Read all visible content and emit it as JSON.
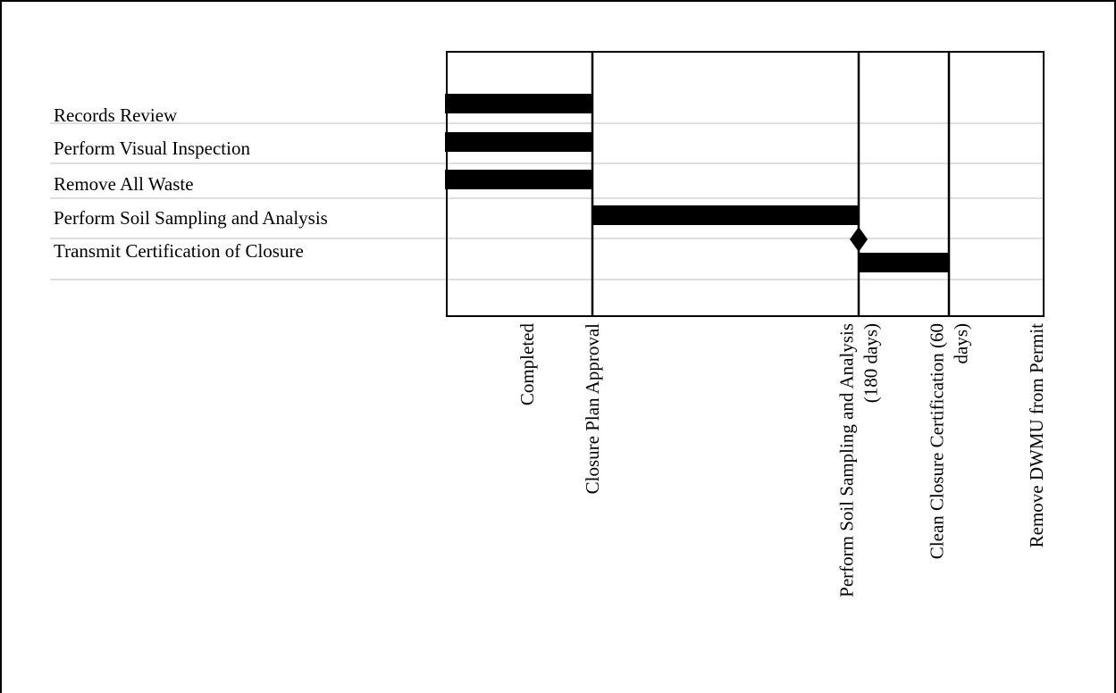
{
  "chart_data": {
    "type": "gantt",
    "title": "",
    "tasks": [
      {
        "name": "Records Review",
        "start": 0,
        "end": 1
      },
      {
        "name": "Perform Visual Inspection",
        "start": 0,
        "end": 1
      },
      {
        "name": "Remove All Waste",
        "start": 0,
        "end": 1
      },
      {
        "name": "Perform Soil Sampling and Analysis",
        "start": 1,
        "end": 2
      },
      {
        "name": "Transmit Certification of Closure",
        "start": 2,
        "end": 2.65,
        "milestone_at": 2
      }
    ],
    "milestones": [
      {
        "lines": [
          "Completed"
        ]
      },
      {
        "lines": [
          "Closure Plan Approval"
        ]
      },
      {
        "lines": [
          "Perform Soil Sampling and Analysis",
          "(180 days)"
        ]
      },
      {
        "lines": [
          "Clean Closure Certification (60",
          "days)"
        ]
      },
      {
        "lines": [
          "Remove DWMU from Permit"
        ]
      }
    ],
    "phase_boundaries": [
      1,
      2,
      2.65
    ],
    "x_range": [
      -0.05,
      3.1
    ],
    "colors": {
      "bar": "#000000",
      "gridline": "#bfbfbf",
      "axis": "#000000"
    }
  }
}
